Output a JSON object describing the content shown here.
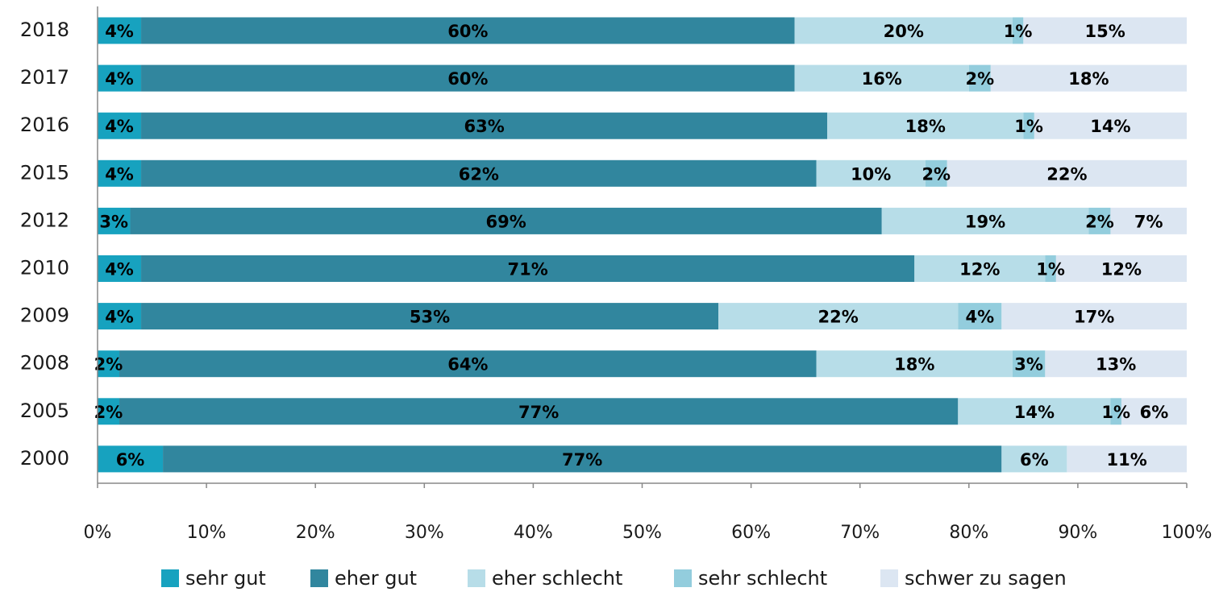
{
  "chart_data": {
    "type": "stacked-barh",
    "categories": [
      "2018",
      "2017",
      "2016",
      "2015",
      "2012",
      "2010",
      "2009",
      "2008",
      "2005",
      "2000"
    ],
    "series": [
      {
        "name": "sehr gut",
        "color": "#17a2bf",
        "values": [
          4,
          4,
          4,
          4,
          3,
          4,
          4,
          2,
          2,
          6
        ],
        "value_labels": [
          "4%",
          "4%",
          "4%",
          "4%",
          "3%",
          "4%",
          "4%",
          "2%",
          "2%",
          "6%"
        ]
      },
      {
        "name": "eher gut",
        "color": "#31869e",
        "values": [
          60,
          60,
          63,
          62,
          69,
          71,
          53,
          64,
          77,
          77
        ],
        "value_labels": [
          "60%",
          "60%",
          "63%",
          "62%",
          "69%",
          "71%",
          "53%",
          "64%",
          "77%",
          "77%"
        ]
      },
      {
        "name": "eher schlecht",
        "color": "#b7dde8",
        "values": [
          20,
          16,
          18,
          10,
          19,
          12,
          22,
          18,
          14,
          6
        ],
        "value_labels": [
          "20%",
          "16%",
          "18%",
          "10%",
          "19%",
          "12%",
          "22%",
          "18%",
          "14%",
          "6%"
        ]
      },
      {
        "name": "sehr schlecht",
        "color": "#93cddd",
        "values": [
          1,
          2,
          1,
          2,
          2,
          1,
          4,
          3,
          1,
          null
        ],
        "value_labels": [
          "1%",
          "2%",
          "1%",
          "2%",
          "2%",
          "1%",
          "4%",
          "3%",
          "1%",
          null
        ]
      },
      {
        "name": "schwer zu sagen",
        "color": "#dce6f2",
        "values": [
          15,
          18,
          14,
          22,
          7,
          12,
          17,
          13,
          6,
          11
        ],
        "value_labels": [
          "15%",
          "18%",
          "14%",
          "22%",
          "7%",
          "12%",
          "17%",
          "13%",
          "6%",
          "11%"
        ]
      }
    ],
    "xlim": [
      0,
      100
    ],
    "xticks": [
      {
        "value": 0,
        "label": "0%"
      },
      {
        "value": 10,
        "label": "10%"
      },
      {
        "value": 20,
        "label": "20%"
      },
      {
        "value": 30,
        "label": "30%"
      },
      {
        "value": 40,
        "label": "40%"
      },
      {
        "value": 50,
        "label": "50%"
      },
      {
        "value": 60,
        "label": "60%"
      },
      {
        "value": 70,
        "label": "70%"
      },
      {
        "value": 80,
        "label": "80%"
      },
      {
        "value": 90,
        "label": "90%"
      },
      {
        "value": 100,
        "label": "100%"
      }
    ],
    "legend": "bottom"
  }
}
